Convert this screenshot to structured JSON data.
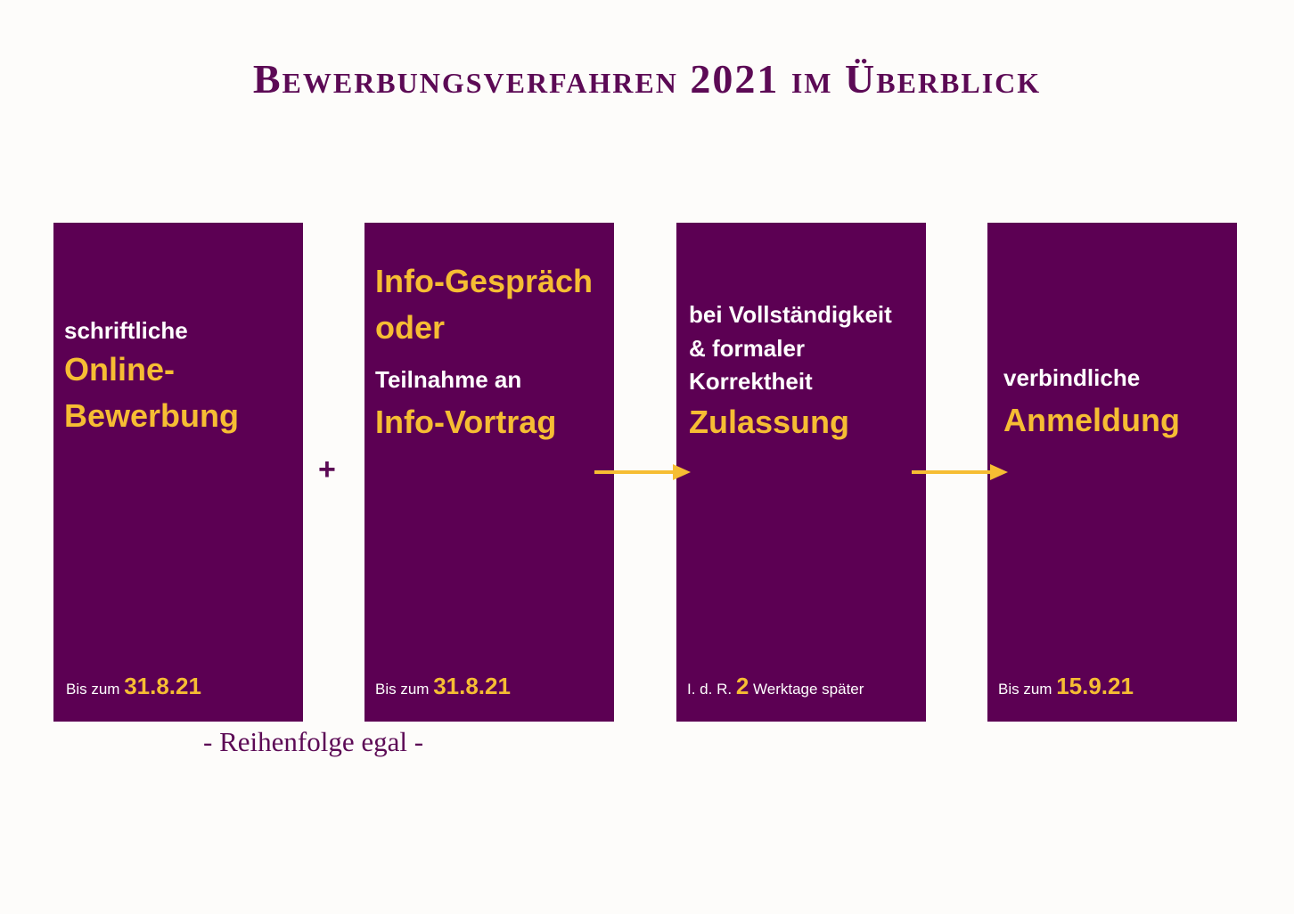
{
  "title": "Bewerbungsverfahren 2021 im Überblick",
  "colors": {
    "background": "#fdfcfa",
    "card": "#5c0053",
    "accent": "#f6bd33",
    "text_purple": "#5c0a55",
    "text_white": "#ffffff"
  },
  "steps": [
    {
      "pre": "schriftliche",
      "main": "Online-\nBewerbung",
      "deadline_prefix": "Bis zum",
      "deadline": "31.8.21",
      "deadline_suffix": ""
    },
    {
      "main_top": "Info-Gespräch\noder",
      "pre": "Teilnahme an",
      "main": "Info-Vortrag",
      "deadline_prefix": "Bis zum",
      "deadline": "31.8.21",
      "deadline_suffix": ""
    },
    {
      "pre": "bei Vollständigkeit\n& formaler\nKorrektheit",
      "main": "Zulassung",
      "deadline_prefix": "I. d. R.",
      "deadline": "2",
      "deadline_suffix": "Werktage später"
    },
    {
      "pre": "verbindliche",
      "main": "Anmeldung",
      "deadline_prefix": "Bis zum",
      "deadline": "15.9.21",
      "deadline_suffix": ""
    }
  ],
  "connectors": {
    "plus": "+",
    "arrow_icon": "right-arrow-icon"
  },
  "note": "- Reihenfolge egal -"
}
